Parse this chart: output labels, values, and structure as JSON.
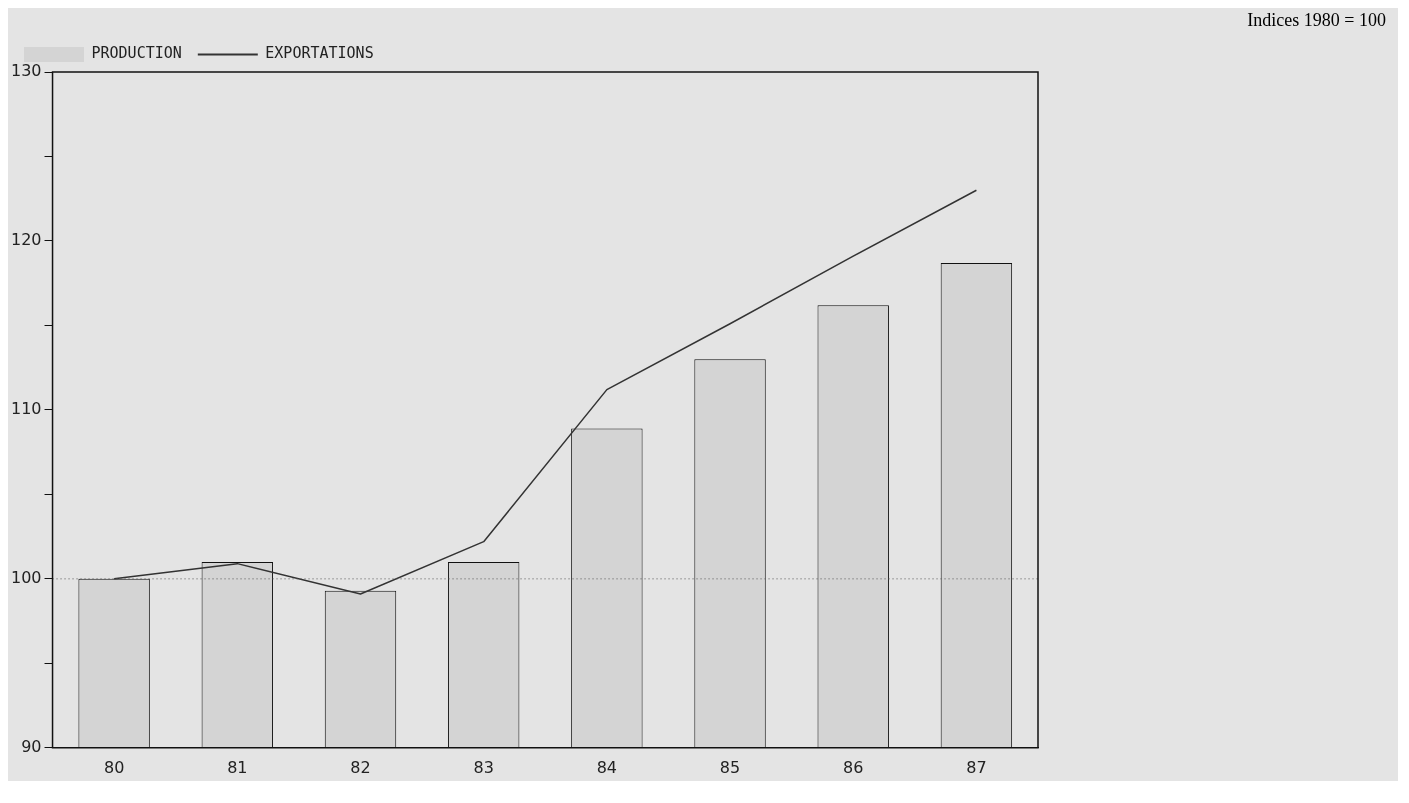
{
  "chart_data": {
    "type": "bar",
    "subtitle": "Indices 1980 = 100",
    "categories": [
      "80",
      "81",
      "82",
      "83",
      "84",
      "85",
      "86",
      "87"
    ],
    "series": [
      {
        "name": "PRODUCTION",
        "color": "#d4d4d4",
        "values": [
          100,
          101,
          99.3,
          101,
          108.9,
          113,
          116.2,
          118.7
        ]
      },
      {
        "name": "EXPORTATIONS",
        "type": "line",
        "color": "#333333",
        "values": [
          100,
          100.9,
          99.1,
          102.2,
          111.2,
          115.1,
          119.1,
          123
        ]
      }
    ],
    "ylim": [
      90,
      130
    ],
    "yticks": [
      90,
      {
        "value": 95,
        "label": null
      },
      100,
      {
        "value": 105,
        "label": null
      },
      110,
      {
        "value": 115,
        "label": null
      },
      120,
      {
        "value": 125,
        "label": null
      },
      130
    ],
    "ref_lines": [
      {
        "axis": "y",
        "value": 100,
        "line_style": "dotted",
        "color": "#555555"
      }
    ],
    "legend": "top left",
    "grid": false,
    "marker": "none"
  }
}
